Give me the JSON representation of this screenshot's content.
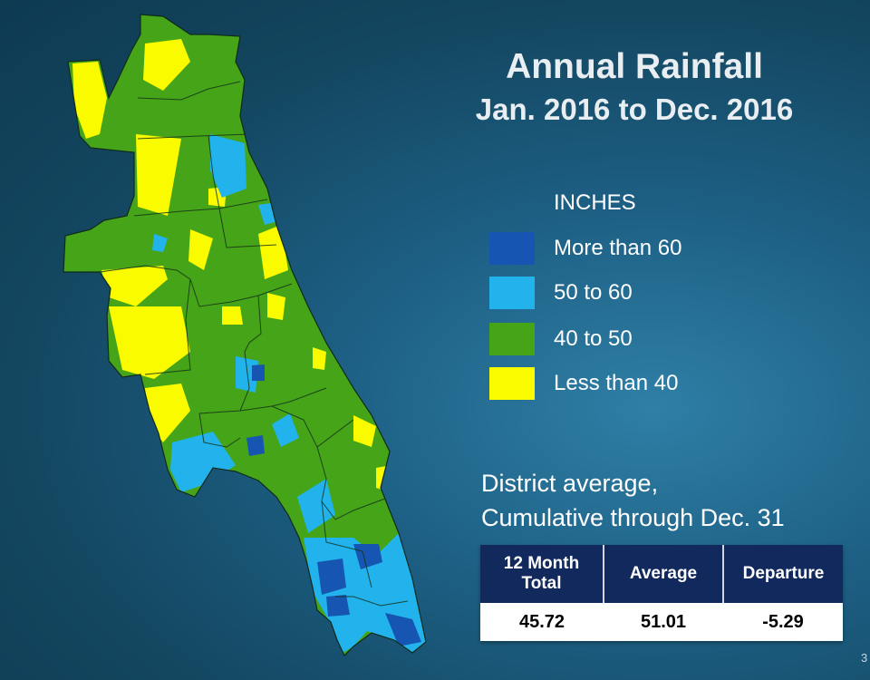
{
  "title": {
    "line1": "Annual Rainfall",
    "line2": "Jan. 2016 to Dec. 2016"
  },
  "legend": {
    "heading": "INCHES",
    "items": [
      {
        "label": "More than 60",
        "color": "#1755b2"
      },
      {
        "label": "50 to 60",
        "color": "#22b3ec"
      },
      {
        "label": "40 to 50",
        "color": "#46a418"
      },
      {
        "label": "Less than 40",
        "color": "#fbfb00"
      }
    ]
  },
  "summary": {
    "line1": "District average,",
    "line2": "Cumulative through Dec. 31"
  },
  "table": {
    "headers": [
      "12 Month Total",
      "Average",
      "Departure"
    ],
    "values": [
      "45.72",
      "51.01",
      "-5.29"
    ]
  },
  "page_number": "3"
}
